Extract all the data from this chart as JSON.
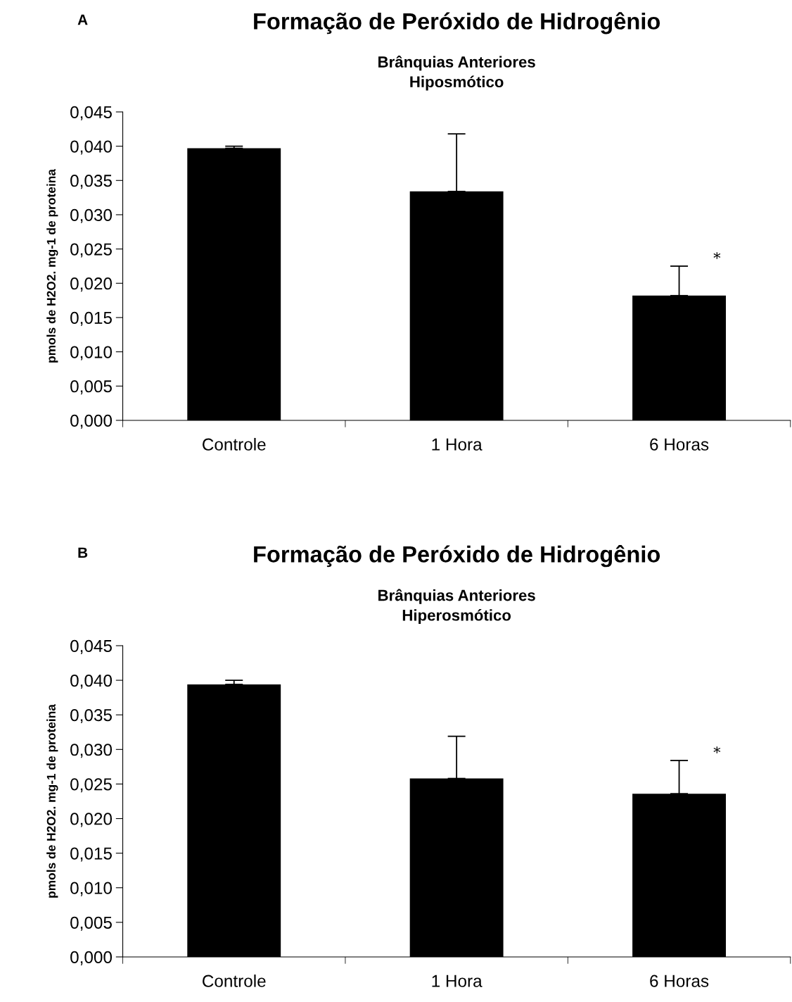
{
  "chart_data": [
    {
      "type": "bar",
      "title": "Formação de Peróxido de Hidrogênio",
      "subtitle": "Brânquias Anteriores\nHiposmótico",
      "ylabel": "pmols de H2O2. mg-1 de proteina",
      "categories": [
        "Controle",
        "1 Hora",
        "6 Horas"
      ],
      "series": [
        {
          "color": "#000000",
          "values": [
            0.0397,
            0.0334,
            0.0182
          ],
          "errors": [
            [
              0.0397,
              0.04
            ],
            [
              0.0334,
              0.0418
            ],
            [
              0.0182,
              0.0225
            ]
          ]
        }
      ],
      "ylim": [
        0,
        0.045
      ],
      "yticks": [
        {
          "value": 0,
          "label": "0,000"
        },
        {
          "value": 0.005,
          "label": "0,005"
        },
        {
          "value": 0.01,
          "label": "0,010"
        },
        {
          "value": 0.015,
          "label": "0,015"
        },
        {
          "value": 0.02,
          "label": "0,020"
        },
        {
          "value": 0.025,
          "label": "0,025"
        },
        {
          "value": 0.03,
          "label": "0,030"
        },
        {
          "value": 0.035,
          "label": "0,035"
        },
        {
          "value": 0.04,
          "label": "0,040"
        },
        {
          "value": 0.045,
          "label": "0,045"
        }
      ],
      "grid": false,
      "legend": false,
      "annotations": [
        "A",
        {
          "text": "*",
          "x": "6 Horas",
          "y": 0.0225
        }
      ]
    },
    {
      "type": "bar",
      "title": "Formação de Peróxido de Hidrogênio",
      "subtitle": "Brânquias Anteriores\nHiperosmótico",
      "ylabel": "pmols de H2O2. mg-1 de proteina",
      "categories": [
        "Controle",
        "1 Hora",
        "6 Horas"
      ],
      "series": [
        {
          "color": "#000000",
          "values": [
            0.0394,
            0.0258,
            0.0236
          ],
          "errors": [
            [
              0.0394,
              0.04
            ],
            [
              0.0258,
              0.0319
            ],
            [
              0.0236,
              0.0284
            ]
          ]
        }
      ],
      "ylim": [
        0,
        0.045
      ],
      "yticks": [
        {
          "value": 0,
          "label": "0,000"
        },
        {
          "value": 0.005,
          "label": "0,005"
        },
        {
          "value": 0.01,
          "label": "0,010"
        },
        {
          "value": 0.015,
          "label": "0,015"
        },
        {
          "value": 0.02,
          "label": "0,020"
        },
        {
          "value": 0.025,
          "label": "0,025"
        },
        {
          "value": 0.03,
          "label": "0,030"
        },
        {
          "value": 0.035,
          "label": "0,035"
        },
        {
          "value": 0.04,
          "label": "0,040"
        },
        {
          "value": 0.045,
          "label": "0,045"
        }
      ],
      "grid": false,
      "legend": false,
      "annotations": [
        "B",
        {
          "text": "*",
          "x": "6 Horas",
          "y": 0.0284
        }
      ]
    }
  ]
}
